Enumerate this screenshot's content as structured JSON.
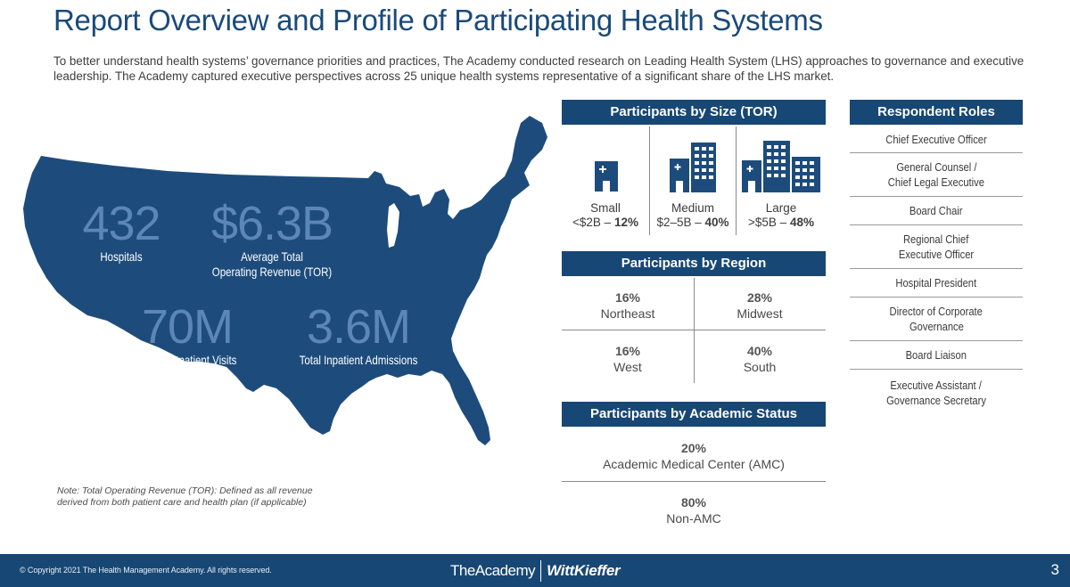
{
  "title": "Report Overview and Profile of Participating Health Systems",
  "intro": "To better understand health systems’ governance priorities and practices, The Academy conducted research on Leading Health System (LHS) approaches to governance and executive leadership. The Academy captured executive perspectives across 25 unique health systems representative of a significant share of the LHS market.",
  "map": {
    "stats": [
      {
        "value": "432",
        "label": "Hospitals"
      },
      {
        "value": "$6.3B",
        "label_line1": "Average Total",
        "label_line2": "Operating Revenue (TOR)"
      },
      {
        "value": "70M",
        "label": "Total Outpatient Visits"
      },
      {
        "value": "3.6M",
        "label": "Total Inpatient Admissions"
      }
    ]
  },
  "note": "Note: Total Operating Revenue (TOR): Defined as all revenue derived from both patient care and health plan (if applicable)",
  "size": {
    "header": "Participants by Size (TOR)",
    "items": [
      {
        "name": "Small",
        "range": "<$2B",
        "sep": " – ",
        "pct": "12%"
      },
      {
        "name": "Medium",
        "range": "$2–5B",
        "sep": " – ",
        "pct": "40%"
      },
      {
        "name": "Large",
        "range": ">$5B",
        "sep": " – ",
        "pct": "48%"
      }
    ]
  },
  "region": {
    "header": "Participants by Region",
    "items": [
      {
        "pct": "16%",
        "name": "Northeast"
      },
      {
        "pct": "28%",
        "name": "Midwest"
      },
      {
        "pct": "16%",
        "name": "West"
      },
      {
        "pct": "40%",
        "name": "South"
      }
    ]
  },
  "academic": {
    "header": "Participants by Academic Status",
    "items": [
      {
        "pct": "20%",
        "name": "Academic Medical Center (AMC)"
      },
      {
        "pct": "80%",
        "name": "Non-AMC"
      }
    ]
  },
  "roles": {
    "header": "Respondent Roles",
    "items": [
      {
        "line1": "Chief Executive Officer"
      },
      {
        "line1": "General Counsel /",
        "line2": "Chief Legal Executive"
      },
      {
        "line1": "Board Chair"
      },
      {
        "line1": "Regional Chief",
        "line2": "Executive Officer"
      },
      {
        "line1": "Hospital President"
      },
      {
        "line1": "Director of Corporate",
        "line2": "Governance"
      },
      {
        "line1": "Board Liaison"
      },
      {
        "line1": "Executive Assistant /",
        "line2": "Governance Secretary"
      }
    ]
  },
  "footer": {
    "copyright": "© Copyright 2021 The Health Management Academy. All rights reserved.",
    "brand1": "TheAcademy",
    "brand2": "WittKieffer",
    "page": "3"
  },
  "colors": {
    "navy": "#174774",
    "map": "#1d4c7c",
    "stat_number": "#5b86b6"
  }
}
